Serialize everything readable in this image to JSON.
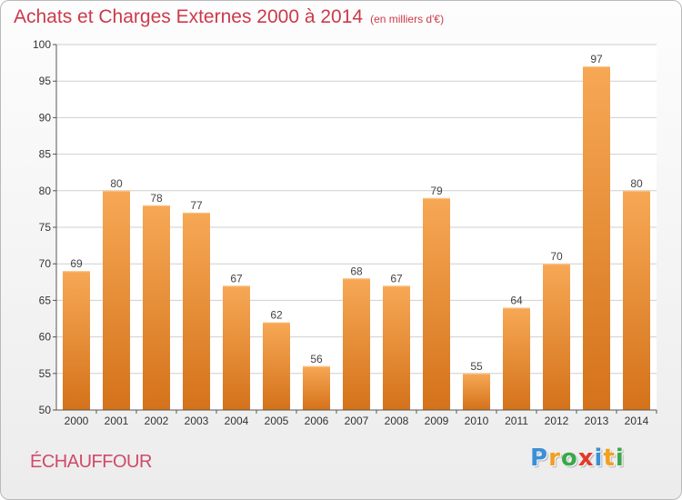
{
  "header": {
    "title": "Achats et Charges Externes 2000 à 2014",
    "subtitle": "(en milliers d'€)"
  },
  "commune": "ÉCHAUFFOUR",
  "logo": {
    "text": "Proxiti",
    "letters": [
      {
        "ch": "P",
        "color": "#3a8fd8"
      },
      {
        "ch": "r",
        "color": "#f0a020"
      },
      {
        "ch": "o",
        "color": "#3aa84a"
      },
      {
        "ch": "x",
        "color": "#e23a2a"
      },
      {
        "ch": "i",
        "color": "#3a8fd8"
      },
      {
        "ch": "t",
        "color": "#f0a020"
      },
      {
        "ch": "i",
        "color": "#3aa84a"
      }
    ]
  },
  "colors": {
    "title": "#cc3a4a",
    "bar_top": "#f7a855",
    "bar_bottom": "#d4721a",
    "axis": "#555555",
    "grid": "#cfcfcf",
    "plot_bg": "#ffffff"
  },
  "chart_data": {
    "type": "bar",
    "title": "Achats et Charges Externes 2000 à 2014",
    "subtitle": "(en milliers d'€)",
    "categories": [
      "2000",
      "2001",
      "2002",
      "2003",
      "2004",
      "2005",
      "2006",
      "2007",
      "2008",
      "2009",
      "2010",
      "2011",
      "2012",
      "2013",
      "2014"
    ],
    "values": [
      69,
      80,
      78,
      77,
      67,
      62,
      56,
      68,
      67,
      79,
      55,
      64,
      70,
      97,
      80
    ],
    "ylim": [
      50,
      100
    ],
    "yticks": [
      50,
      55,
      60,
      65,
      70,
      75,
      80,
      85,
      90,
      95,
      100
    ],
    "grid": true,
    "data_labels": true,
    "xlabel": "",
    "ylabel": ""
  }
}
